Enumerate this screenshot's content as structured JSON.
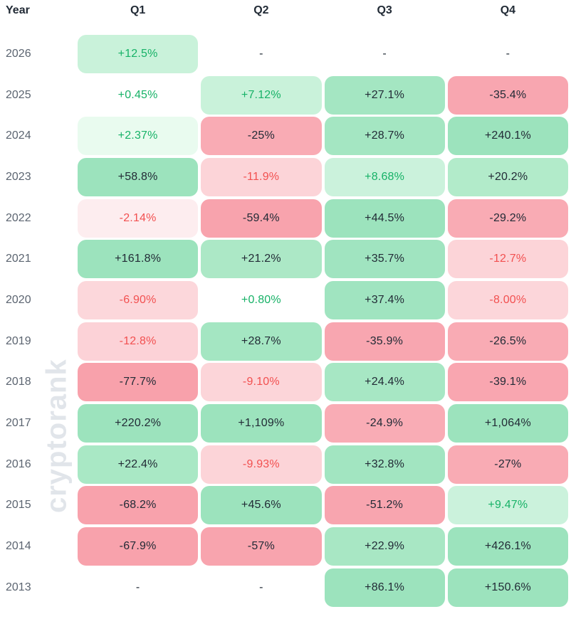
{
  "watermark": "cryptorank",
  "palette": {
    "text_dark": "#222b36",
    "text_green": "#17b267",
    "text_red": "#f25050",
    "year_text": "#5b6470",
    "header_text": "#222b36",
    "watermark_color": "#e1e5ea",
    "green_strong": "#9ce3bd",
    "green_mid": "#a4e6c2",
    "green_light": "#c9f2da",
    "green_faint": "#e9fbef",
    "pink_strong": "#f8a4ae",
    "pink_mid": "#f9abb4",
    "pink_light": "#fcd4d8",
    "pink_faint": "#fdedef"
  },
  "chart_data": {
    "type": "heatmap",
    "title": "Quarterly returns heatmap by year",
    "row_header": "Year",
    "columns": [
      "Q1",
      "Q2",
      "Q3",
      "Q4"
    ],
    "missing_marker": "-",
    "rows": [
      {
        "year": "2026",
        "cells": [
          {
            "label": "+12.5%",
            "value": 12.5,
            "bg": "#c9f2da",
            "fg": "green"
          },
          {
            "label": "-",
            "value": null,
            "bg": null,
            "fg": "dark"
          },
          {
            "label": "-",
            "value": null,
            "bg": null,
            "fg": "dark"
          },
          {
            "label": "-",
            "value": null,
            "bg": null,
            "fg": "dark"
          }
        ]
      },
      {
        "year": "2025",
        "cells": [
          {
            "label": "+0.45%",
            "value": 0.45,
            "bg": null,
            "fg": "green"
          },
          {
            "label": "+7.12%",
            "value": 7.12,
            "bg": "#c9f2da",
            "fg": "green"
          },
          {
            "label": "+27.1%",
            "value": 27.1,
            "bg": "#a4e6c2",
            "fg": "dark"
          },
          {
            "label": "-35.4%",
            "value": -35.4,
            "bg": "#f8a6b0",
            "fg": "dark"
          }
        ]
      },
      {
        "year": "2024",
        "cells": [
          {
            "label": "+2.37%",
            "value": 2.37,
            "bg": "#e9fbef",
            "fg": "green"
          },
          {
            "label": "-25%",
            "value": -25,
            "bg": "#f9abb4",
            "fg": "dark"
          },
          {
            "label": "+28.7%",
            "value": 28.7,
            "bg": "#a4e6c2",
            "fg": "dark"
          },
          {
            "label": "+240.1%",
            "value": 240.1,
            "bg": "#9ce3bd",
            "fg": "dark"
          }
        ]
      },
      {
        "year": "2023",
        "cells": [
          {
            "label": "+58.8%",
            "value": 58.8,
            "bg": "#9ce3bd",
            "fg": "dark"
          },
          {
            "label": "-11.9%",
            "value": -11.9,
            "bg": "#fcd4d8",
            "fg": "red"
          },
          {
            "label": "+8.68%",
            "value": 8.68,
            "bg": "#cbf2dc",
            "fg": "green"
          },
          {
            "label": "+20.2%",
            "value": 20.2,
            "bg": "#b2ebca",
            "fg": "dark"
          }
        ]
      },
      {
        "year": "2022",
        "cells": [
          {
            "label": "-2.14%",
            "value": -2.14,
            "bg": "#fdedef",
            "fg": "red"
          },
          {
            "label": "-59.4%",
            "value": -59.4,
            "bg": "#f8a3ad",
            "fg": "dark"
          },
          {
            "label": "+44.5%",
            "value": 44.5,
            "bg": "#9ce3bd",
            "fg": "dark"
          },
          {
            "label": "-29.2%",
            "value": -29.2,
            "bg": "#f9abb4",
            "fg": "dark"
          }
        ]
      },
      {
        "year": "2021",
        "cells": [
          {
            "label": "+161.8%",
            "value": 161.8,
            "bg": "#9ce3bd",
            "fg": "dark"
          },
          {
            "label": "+21.2%",
            "value": 21.2,
            "bg": "#ace8c6",
            "fg": "dark"
          },
          {
            "label": "+35.7%",
            "value": 35.7,
            "bg": "#a0e4c0",
            "fg": "dark"
          },
          {
            "label": "-12.7%",
            "value": -12.7,
            "bg": "#fcd4d8",
            "fg": "red"
          }
        ]
      },
      {
        "year": "2020",
        "cells": [
          {
            "label": "-6.90%",
            "value": -6.9,
            "bg": "#fcd7db",
            "fg": "red"
          },
          {
            "label": "+0.80%",
            "value": 0.8,
            "bg": null,
            "fg": "green"
          },
          {
            "label": "+37.4%",
            "value": 37.4,
            "bg": "#a0e4c0",
            "fg": "dark"
          },
          {
            "label": "-8.00%",
            "value": -8.0,
            "bg": "#fcd6da",
            "fg": "red"
          }
        ]
      },
      {
        "year": "2019",
        "cells": [
          {
            "label": "-12.8%",
            "value": -12.8,
            "bg": "#fcd2d7",
            "fg": "red"
          },
          {
            "label": "+28.7%",
            "value": 28.7,
            "bg": "#a4e6c2",
            "fg": "dark"
          },
          {
            "label": "-35.9%",
            "value": -35.9,
            "bg": "#f8a6b0",
            "fg": "dark"
          },
          {
            "label": "-26.5%",
            "value": -26.5,
            "bg": "#f9abb4",
            "fg": "dark"
          }
        ]
      },
      {
        "year": "2018",
        "cells": [
          {
            "label": "-77.7%",
            "value": -77.7,
            "bg": "#f8a1ab",
            "fg": "dark"
          },
          {
            "label": "-9.10%",
            "value": -9.1,
            "bg": "#fcd5d9",
            "fg": "red"
          },
          {
            "label": "+24.4%",
            "value": 24.4,
            "bg": "#a7e7c4",
            "fg": "dark"
          },
          {
            "label": "-39.1%",
            "value": -39.1,
            "bg": "#f9a6b0",
            "fg": "dark"
          }
        ]
      },
      {
        "year": "2017",
        "cells": [
          {
            "label": "+220.2%",
            "value": 220.2,
            "bg": "#9ce3bd",
            "fg": "dark"
          },
          {
            "label": "+1,109%",
            "value": 1109,
            "bg": "#9ce3bd",
            "fg": "dark"
          },
          {
            "label": "-24.9%",
            "value": -24.9,
            "bg": "#f9acb5",
            "fg": "dark"
          },
          {
            "label": "+1,064%",
            "value": 1064,
            "bg": "#9ce3bd",
            "fg": "dark"
          }
        ]
      },
      {
        "year": "2016",
        "cells": [
          {
            "label": "+22.4%",
            "value": 22.4,
            "bg": "#a9e8c5",
            "fg": "dark"
          },
          {
            "label": "-9.93%",
            "value": -9.93,
            "bg": "#fcd4d8",
            "fg": "red"
          },
          {
            "label": "+32.8%",
            "value": 32.8,
            "bg": "#a2e5c1",
            "fg": "dark"
          },
          {
            "label": "-27%",
            "value": -27,
            "bg": "#f9abb4",
            "fg": "dark"
          }
        ]
      },
      {
        "year": "2015",
        "cells": [
          {
            "label": "-68.2%",
            "value": -68.2,
            "bg": "#f8a2ac",
            "fg": "dark"
          },
          {
            "label": "+45.6%",
            "value": 45.6,
            "bg": "#9ce3bd",
            "fg": "dark"
          },
          {
            "label": "-51.2%",
            "value": -51.2,
            "bg": "#f8a5af",
            "fg": "dark"
          },
          {
            "label": "+9.47%",
            "value": 9.47,
            "bg": "#cbf2dc",
            "fg": "green"
          }
        ]
      },
      {
        "year": "2014",
        "cells": [
          {
            "label": "-67.9%",
            "value": -67.9,
            "bg": "#f8a2ac",
            "fg": "dark"
          },
          {
            "label": "-57%",
            "value": -57,
            "bg": "#f8a4ae",
            "fg": "dark"
          },
          {
            "label": "+22.9%",
            "value": 22.9,
            "bg": "#a8e7c4",
            "fg": "dark"
          },
          {
            "label": "+426.1%",
            "value": 426.1,
            "bg": "#9ce3bd",
            "fg": "dark"
          }
        ]
      },
      {
        "year": "2013",
        "cells": [
          {
            "label": "-",
            "value": null,
            "bg": null,
            "fg": "dark"
          },
          {
            "label": "-",
            "value": null,
            "bg": null,
            "fg": "dark"
          },
          {
            "label": "+86.1%",
            "value": 86.1,
            "bg": "#9ce3bd",
            "fg": "dark"
          },
          {
            "label": "+150.6%",
            "value": 150.6,
            "bg": "#9ce3bd",
            "fg": "dark"
          }
        ]
      }
    ]
  }
}
